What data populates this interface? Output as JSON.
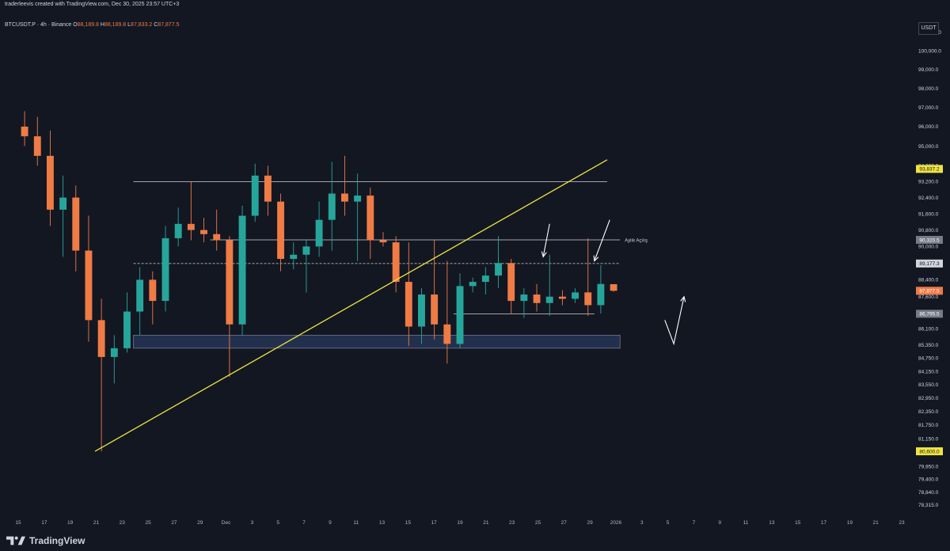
{
  "header": {
    "credit": "traderleevis created with TradingView.com, Dec 30, 2025 23:57 UTC+3"
  },
  "symbol": {
    "name": "BTCUSDT.P · 4h · Binance",
    "ohlc": [
      {
        "label": "O",
        "value": "88,189.8"
      },
      {
        "label": "H",
        "value": "88,189.8"
      },
      {
        "label": "L",
        "value": "87,833.2"
      },
      {
        "label": "C",
        "value": "87,877.5"
      }
    ]
  },
  "currency_badge": "USDT",
  "brand": "TradingView",
  "colors": {
    "background": "#131722",
    "bull": "#26a69a",
    "bear": "#ef7b45",
    "trendline": "#f0e442",
    "level_line": "#d1d4dc",
    "demand_zone": "#2a3a5c",
    "current_price": "#ef7b45",
    "highlight": "#f0e442"
  },
  "chart_data": {
    "type": "candlestick",
    "y_axis": {
      "range": [
        77900,
        101900
      ],
      "ticks": [
        "101,000.0",
        "100,000.0",
        "99,000.0",
        "98,000.0",
        "97,000.0",
        "96,000.0",
        "95,000.0",
        "94,000.0",
        "93,200.0",
        "92,400.0",
        "91,600.0",
        "90,800.0",
        "90,000.0",
        "89,200.0",
        "88,400.0",
        "87,600.0",
        "86,800.0",
        "86,100.0",
        "85,350.0",
        "84,750.0",
        "84,150.0",
        "83,550.0",
        "82,950.0",
        "82,350.0",
        "81,750.0",
        "81,150.0",
        "80,550.0",
        "79,950.0",
        "79,400.0",
        "78,840.0",
        "78,315.0"
      ],
      "scale": "log"
    },
    "x_axis": {
      "ticks": [
        "15",
        "17",
        "19",
        "21",
        "23",
        "25",
        "27",
        "29",
        "Dec",
        "3",
        "5",
        "7",
        "9",
        "11",
        "13",
        "15",
        "17",
        "19",
        "21",
        "23",
        "25",
        "27",
        "29",
        "2026",
        "3",
        "5",
        "7",
        "9",
        "11",
        "13",
        "15",
        "17",
        "19",
        "21",
        "23"
      ],
      "range": [
        "2025-11-15",
        "2026-01-23"
      ]
    },
    "price_labels": [
      {
        "value": 93837.2,
        "text": "93,837.2",
        "style": "highlight"
      },
      {
        "value": 90320.5,
        "text": "90,320.5",
        "style": "gray"
      },
      {
        "value": 89177.3,
        "text": "89,177.3",
        "style": "light"
      },
      {
        "value": 87877.5,
        "text": "87,877.5",
        "style": "current"
      },
      {
        "value": 86795.5,
        "text": "86,795.5",
        "style": "gray"
      },
      {
        "value": 80600.0,
        "text": "80,600.0",
        "style": "highlight"
      }
    ],
    "annotations": [
      {
        "type": "hline",
        "value": 93200,
        "from": "2025-11-24",
        "to": "2025-12-31",
        "style": "solid"
      },
      {
        "type": "hline",
        "value": 90320.5,
        "from": "2025-11-30",
        "to": "2026-01-01",
        "style": "solid",
        "label": "Aylık Açılış"
      },
      {
        "type": "hline",
        "value": 89177.3,
        "from": "2025-11-24",
        "to": "2026-01-01",
        "style": "dashed"
      },
      {
        "type": "hline",
        "value": 86795.5,
        "from": "2025-12-19",
        "to": "2025-12-30",
        "style": "solid"
      },
      {
        "type": "zone",
        "top": 85800,
        "bottom": 85200,
        "from": "2025-11-24",
        "to": "2026-01-01"
      },
      {
        "type": "trendline",
        "from": {
          "date": "2025-11-21",
          "value": 80600
        },
        "to": {
          "date": "2025-12-31",
          "value": 94300
        }
      },
      {
        "type": "arrow",
        "from": {
          "date": "2025-12-26.5",
          "value": 91100
        },
        "to": {
          "date": "2025-12-26",
          "value": 89500
        }
      },
      {
        "type": "arrow",
        "from": {
          "date": "2025-12-31.2",
          "value": 91300
        },
        "to": {
          "date": "2025-12-30",
          "value": 89300
        }
      },
      {
        "type": "polyline",
        "points": [
          {
            "date": "2026-01-04.5",
            "value": 86500
          },
          {
            "date": "2026-01-05.2",
            "value": 85400
          },
          {
            "date": "2026-01-06",
            "value": 87600
          }
        ]
      }
    ],
    "series": [
      {
        "date": "2025-11-15",
        "open": 96000,
        "high": 96800,
        "low": 95000,
        "close": 95500
      },
      {
        "date": "2025-11-16",
        "open": 95500,
        "high": 96500,
        "low": 94000,
        "close": 94500
      },
      {
        "date": "2025-11-17",
        "open": 94500,
        "high": 95800,
        "low": 91000,
        "close": 91800
      },
      {
        "date": "2025-11-18",
        "open": 91800,
        "high": 93500,
        "low": 89500,
        "close": 92400
      },
      {
        "date": "2025-11-19",
        "open": 92400,
        "high": 93000,
        "low": 88800,
        "close": 89800
      },
      {
        "date": "2025-11-20",
        "open": 89800,
        "high": 91500,
        "low": 85500,
        "close": 86500
      },
      {
        "date": "2025-11-21",
        "open": 86500,
        "high": 87500,
        "low": 80600,
        "close": 84800
      },
      {
        "date": "2025-11-22",
        "open": 84800,
        "high": 85800,
        "low": 83600,
        "close": 85200
      },
      {
        "date": "2025-11-23",
        "open": 85200,
        "high": 87800,
        "low": 85000,
        "close": 86900
      },
      {
        "date": "2025-11-24",
        "open": 86900,
        "high": 89000,
        "low": 85800,
        "close": 88400
      },
      {
        "date": "2025-11-25",
        "open": 88400,
        "high": 88800,
        "low": 86300,
        "close": 87400
      },
      {
        "date": "2025-11-26",
        "open": 87400,
        "high": 91000,
        "low": 86900,
        "close": 90400
      },
      {
        "date": "2025-11-27",
        "open": 90400,
        "high": 91900,
        "low": 90000,
        "close": 91100
      },
      {
        "date": "2025-11-28",
        "open": 91100,
        "high": 93200,
        "low": 90300,
        "close": 90800
      },
      {
        "date": "2025-11-29",
        "open": 90800,
        "high": 91400,
        "low": 90200,
        "close": 90600
      },
      {
        "date": "2025-11-30",
        "open": 90600,
        "high": 91800,
        "low": 89800,
        "close": 90300
      },
      {
        "date": "2025-12-01",
        "open": 90300,
        "high": 90500,
        "low": 83900,
        "close": 86300
      },
      {
        "date": "2025-12-02",
        "open": 86300,
        "high": 92000,
        "low": 85800,
        "close": 91500
      },
      {
        "date": "2025-12-03",
        "open": 91500,
        "high": 94100,
        "low": 91200,
        "close": 93500
      },
      {
        "date": "2025-12-04",
        "open": 93500,
        "high": 94000,
        "low": 91500,
        "close": 92200
      },
      {
        "date": "2025-12-05",
        "open": 92200,
        "high": 92600,
        "low": 88800,
        "close": 89400
      },
      {
        "date": "2025-12-06",
        "open": 89400,
        "high": 90200,
        "low": 88900,
        "close": 89600
      },
      {
        "date": "2025-12-07",
        "open": 89600,
        "high": 90300,
        "low": 87800,
        "close": 90000
      },
      {
        "date": "2025-12-08",
        "open": 90000,
        "high": 92200,
        "low": 89500,
        "close": 91300
      },
      {
        "date": "2025-12-09",
        "open": 91300,
        "high": 94200,
        "low": 89800,
        "close": 92600
      },
      {
        "date": "2025-12-10",
        "open": 92600,
        "high": 94500,
        "low": 91500,
        "close": 92200
      },
      {
        "date": "2025-12-11",
        "open": 92200,
        "high": 93600,
        "low": 89300,
        "close": 92500
      },
      {
        "date": "2025-12-12",
        "open": 92500,
        "high": 92900,
        "low": 89400,
        "close": 90300
      },
      {
        "date": "2025-12-13",
        "open": 90300,
        "high": 90700,
        "low": 90000,
        "close": 90200
      },
      {
        "date": "2025-12-14",
        "open": 90200,
        "high": 90500,
        "low": 87800,
        "close": 88300
      },
      {
        "date": "2025-12-15",
        "open": 88300,
        "high": 90200,
        "low": 85300,
        "close": 86200
      },
      {
        "date": "2025-12-16",
        "open": 86200,
        "high": 88000,
        "low": 85400,
        "close": 87700
      },
      {
        "date": "2025-12-17",
        "open": 87700,
        "high": 90300,
        "low": 85600,
        "close": 86300
      },
      {
        "date": "2025-12-18",
        "open": 86300,
        "high": 89300,
        "low": 84500,
        "close": 85400
      },
      {
        "date": "2025-12-19",
        "open": 85400,
        "high": 88700,
        "low": 85200,
        "close": 88100
      },
      {
        "date": "2025-12-20",
        "open": 88100,
        "high": 88500,
        "low": 87800,
        "close": 88300
      },
      {
        "date": "2025-12-21",
        "open": 88300,
        "high": 89000,
        "low": 87700,
        "close": 88600
      },
      {
        "date": "2025-12-22",
        "open": 88600,
        "high": 90500,
        "low": 88000,
        "close": 89200
      },
      {
        "date": "2025-12-23",
        "open": 89200,
        "high": 89400,
        "low": 86800,
        "close": 87400
      },
      {
        "date": "2025-12-24",
        "open": 87400,
        "high": 88000,
        "low": 86600,
        "close": 87700
      },
      {
        "date": "2025-12-25",
        "open": 87700,
        "high": 88200,
        "low": 86900,
        "close": 87300
      },
      {
        "date": "2025-12-26",
        "open": 87300,
        "high": 89600,
        "low": 86700,
        "close": 87600
      },
      {
        "date": "2025-12-27",
        "open": 87600,
        "high": 87900,
        "low": 87200,
        "close": 87500
      },
      {
        "date": "2025-12-28",
        "open": 87500,
        "high": 88000,
        "low": 87300,
        "close": 87800
      },
      {
        "date": "2025-12-29",
        "open": 87800,
        "high": 90400,
        "low": 86700,
        "close": 87200
      },
      {
        "date": "2025-12-30",
        "open": 87200,
        "high": 89100,
        "low": 86800,
        "close": 88200
      },
      {
        "date": "2025-12-31",
        "open": 88190,
        "high": 88190,
        "low": 87833,
        "close": 87877
      }
    ]
  }
}
